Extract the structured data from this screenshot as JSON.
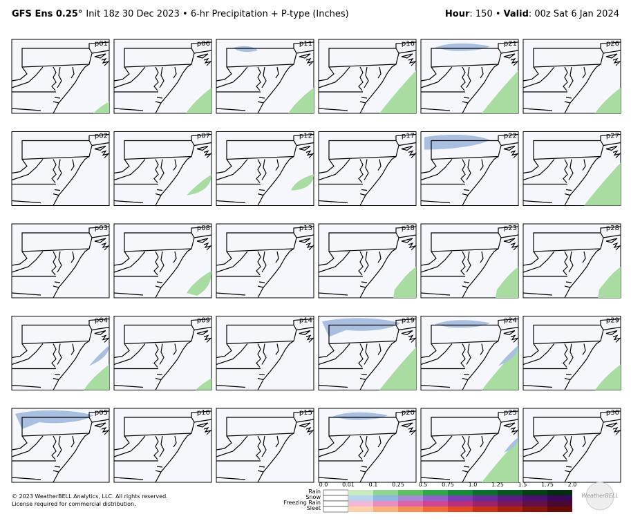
{
  "header": {
    "title_bold": "GFS Ens 0.25°",
    "title_rest": "Init 18z 30 Dec 2023 • 6-hr Precipitation + P-type (Inches)",
    "hour_label": "Hour",
    "hour_value": ": 150 •",
    "valid_label": "Valid",
    "valid_value": ": 00z Sat 6 Jan 2024"
  },
  "panels": [
    "p01",
    "p02",
    "p03",
    "p04",
    "p05",
    "p06",
    "p07",
    "p08",
    "p09",
    "p10",
    "p11",
    "p12",
    "p13",
    "p14",
    "p15",
    "p16",
    "p17",
    "p18",
    "p19",
    "p20",
    "p21",
    "p22",
    "p23",
    "p24",
    "p25",
    "p26",
    "p27",
    "p28",
    "p29",
    "p30"
  ],
  "legend": {
    "rows": [
      "Rain",
      "Snow",
      "Freezing Rain",
      "Sleet"
    ],
    "ticks": [
      "0.0",
      "0.01",
      "0.1",
      "0.25",
      "0.5",
      "0.75",
      "1.0",
      "1.25",
      "1.5",
      "1.75",
      "2.0"
    ]
  },
  "footer": {
    "copyright": "© 2023 WeatherBELL Analytics, LLC. All rights reserved.",
    "license": "License required for commercial distribution.",
    "logo": "WeatherBELL"
  }
}
